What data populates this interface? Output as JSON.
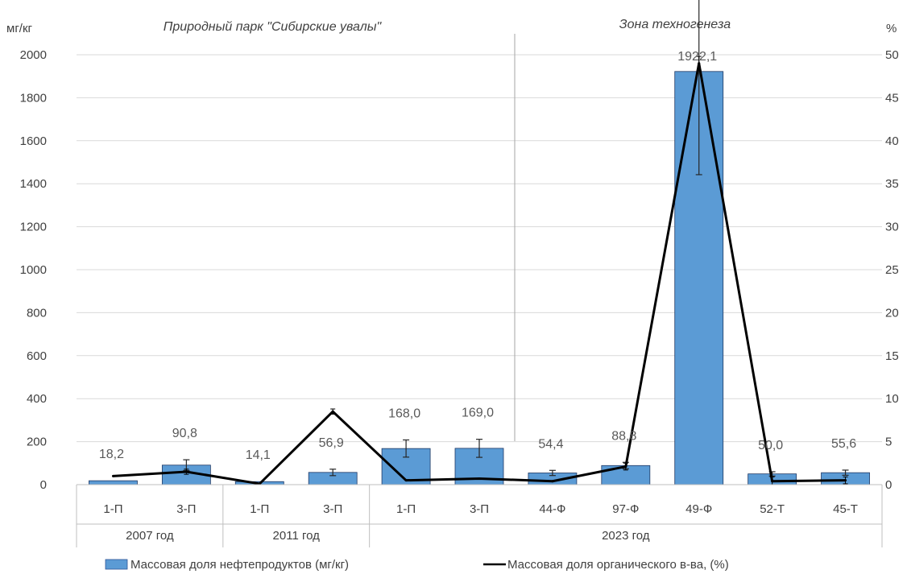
{
  "chart_data": {
    "type": "bar",
    "y_unit_left": "мг/кг",
    "y_unit_right": "%",
    "ylim_left": [
      0,
      2000
    ],
    "ylim_right": [
      0,
      50
    ],
    "yticks_left": [
      "0",
      "200",
      "400",
      "600",
      "800",
      "1000",
      "1200",
      "1400",
      "1600",
      "1800",
      "2000"
    ],
    "yticks_right": [
      "0",
      "5",
      "10",
      "15",
      "20",
      "25",
      "30",
      "35",
      "40",
      "45",
      "50"
    ],
    "grid": true,
    "legend_position": "bottom",
    "region_labels": [
      "Природный парк \"Сибирские увалы\"",
      "Зона техногенеза"
    ],
    "categories": [
      "1-П",
      "3-П",
      "1-П",
      "3-П",
      "1-П",
      "3-П",
      "44-Ф",
      "97-Ф",
      "49-Ф",
      "52-Т",
      "45-Т"
    ],
    "groups": [
      {
        "label": "2007 год",
        "start": 0,
        "end": 1
      },
      {
        "label": "2011 год",
        "start": 2,
        "end": 3
      },
      {
        "label": "2023 год",
        "start": 4,
        "end": 10
      }
    ],
    "series": [
      {
        "name": "Массовая доля нефтепродуктов (мг/кг)",
        "type": "bar",
        "axis": "left",
        "color": "#5b9bd5",
        "values": [
          18.2,
          90.8,
          14.1,
          56.9,
          168.0,
          169.0,
          54.4,
          88.8,
          1922.1,
          50.0,
          55.6
        ],
        "labels": [
          "18,2",
          "90,8",
          "14,1",
          "56,9",
          "168,0",
          "169,0",
          "54,4",
          "88,8",
          "1922,1",
          "50,0",
          "55,6"
        ],
        "error": [
          0,
          25,
          0,
          15,
          40,
          42,
          12,
          15,
          480,
          10,
          12
        ]
      },
      {
        "name": "Массовая доля органического в-ва, (%)",
        "type": "line",
        "axis": "right",
        "color": "#000000",
        "values": [
          1.0,
          1.5,
          0.1,
          8.5,
          0.5,
          0.7,
          0.4,
          2.1,
          49.0,
          0.4,
          0.5
        ],
        "error": [
          0,
          0.3,
          0,
          0.3,
          0,
          0,
          0,
          0.4,
          0.8,
          0.5,
          0.4
        ]
      }
    ]
  }
}
